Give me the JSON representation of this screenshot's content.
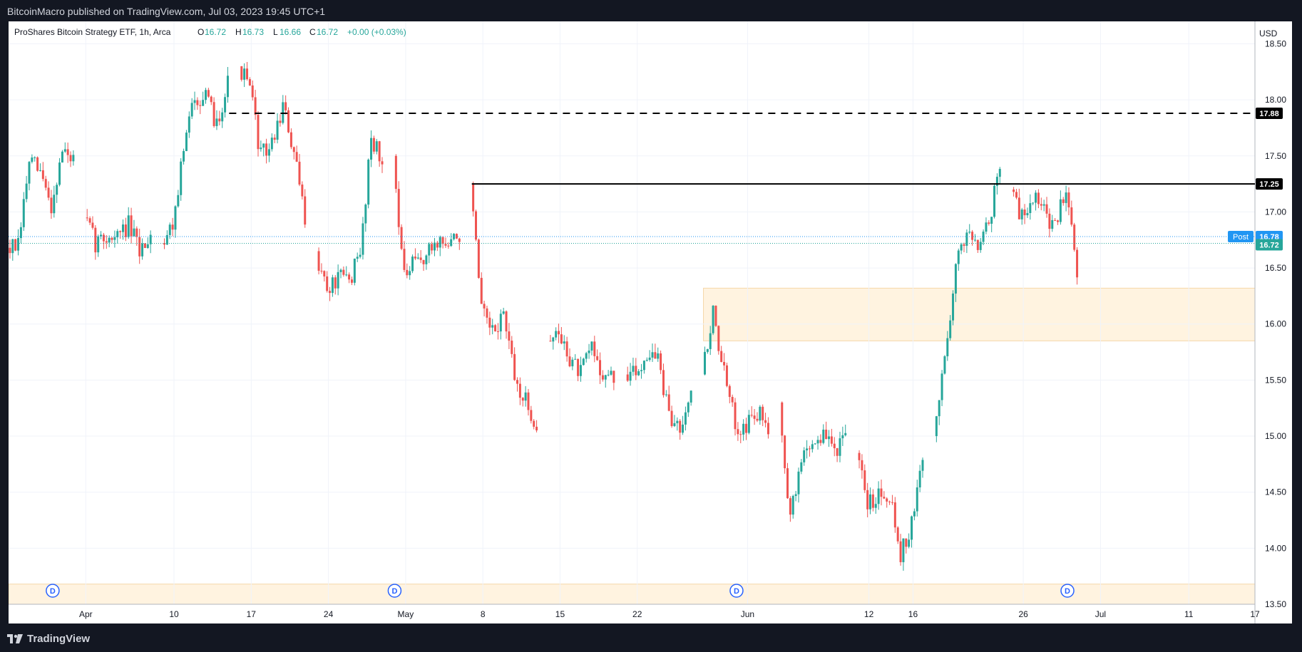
{
  "header": {
    "publisher_line": "BitcoinMacro published on TradingView.com, Jul 03, 2023 19:45 UTC+1"
  },
  "legend": {
    "symbol": "ProShares Bitcoin Strategy ETF, 1h, Arca",
    "o_label": "O",
    "o_value": "16.72",
    "h_label": "H",
    "h_value": "16.73",
    "l_label": "L",
    "l_value": "16.66",
    "c_label": "C",
    "c_value": "16.72",
    "change": "+0.00 (+0.03%)"
  },
  "axis": {
    "currency": "USD",
    "price_ticks": [
      "18.50",
      "18.00",
      "17.50",
      "17.00",
      "16.50",
      "16.00",
      "15.50",
      "15.00",
      "14.50",
      "14.00",
      "13.50"
    ],
    "time_ticks": [
      "Apr",
      "10",
      "17",
      "24",
      "May",
      "8",
      "15",
      "22",
      "Jun",
      "12",
      "16",
      "26",
      "Jul",
      "11",
      "17"
    ]
  },
  "levels": {
    "resistance_dashed": "17.88",
    "resistance_solid": "17.25",
    "post_label": "Post",
    "post_value": "16.78",
    "last_value": "16.72"
  },
  "dividend_marker": "D",
  "footer": {
    "brand": "TradingView"
  },
  "colors": {
    "up": "#26a69a",
    "down": "#ef5350",
    "zone": "#fff3e0",
    "post": "#2196f3",
    "last": "#26a69a",
    "background": "#131722"
  },
  "chart_data": {
    "type": "candlestick",
    "symbol": "ProShares Bitcoin Strategy ETF",
    "interval": "1h",
    "exchange": "Arca",
    "currency": "USD",
    "ylim": [
      13.5,
      18.7
    ],
    "x_range": [
      "Mar 26, 2023",
      "Jul 17, 2023"
    ],
    "grid": true,
    "x_tick_labels": [
      "Apr",
      "10",
      "17",
      "24",
      "May",
      "8",
      "15",
      "22",
      "Jun",
      "12",
      "16",
      "26",
      "Jul",
      "11",
      "17"
    ],
    "y_tick_labels": [
      "18.50",
      "18.00",
      "17.50",
      "17.00",
      "16.50",
      "16.00",
      "15.50",
      "15.00",
      "14.50",
      "14.00",
      "13.50"
    ],
    "horizontal_lines": [
      {
        "value": 17.88,
        "style": "dashed",
        "from": "Apr 15"
      },
      {
        "value": 17.25,
        "style": "solid",
        "from": "May 7"
      }
    ],
    "zones": [
      {
        "from": "May 28",
        "y_low": 15.85,
        "y_high": 16.32
      },
      {
        "from": "Mar 26",
        "y_low": 13.5,
        "y_high": 13.68
      }
    ],
    "dividend_markers": [
      "Mar 30",
      "Apr 30",
      "May 31",
      "Jun 30"
    ],
    "path": [
      [
        "Mar 26",
        16.68
      ],
      [
        "Mar 27",
        16.68
      ],
      [
        "Mar 28",
        17.45
      ],
      [
        "Mar 29",
        17.35
      ],
      [
        "Mar 30",
        17.05
      ],
      [
        "Mar 31",
        17.55
      ],
      [
        "Apr 1",
        17.45
      ],
      [
        "Apr 2",
        16.95
      ],
      [
        "Apr 3",
        16.72
      ],
      [
        "Apr 4",
        16.78
      ],
      [
        "Apr 5",
        16.78
      ],
      [
        "Apr 6",
        16.88
      ],
      [
        "Apr 7",
        16.65
      ],
      [
        "Apr 8",
        16.82
      ],
      [
        "Apr 9",
        16.72
      ],
      [
        "Apr 10",
        16.9
      ],
      [
        "Apr 11",
        17.55
      ],
      [
        "Apr 12",
        18.05
      ],
      [
        "Apr 13",
        18.0
      ],
      [
        "Apr 14",
        17.8
      ],
      [
        "Apr 15",
        18.15
      ],
      [
        "Apr 16",
        18.3
      ],
      [
        "Apr 17",
        18.1
      ],
      [
        "Apr 18",
        17.5
      ],
      [
        "Apr 19",
        17.6
      ],
      [
        "Apr 20",
        17.95
      ],
      [
        "Apr 21",
        17.5
      ],
      [
        "Apr 22",
        16.95
      ],
      [
        "Apr 23",
        16.65
      ],
      [
        "Apr 24",
        16.3
      ],
      [
        "Apr 25",
        16.4
      ],
      [
        "Apr 26",
        16.4
      ],
      [
        "Apr 27",
        16.6
      ],
      [
        "Apr 28",
        17.7
      ],
      [
        "Apr 29",
        17.4
      ],
      [
        "Apr 30",
        17.5
      ],
      [
        "May 1",
        16.4
      ],
      [
        "May 2",
        16.55
      ],
      [
        "May 3",
        16.6
      ],
      [
        "May 4",
        16.75
      ],
      [
        "May 5",
        16.7
      ],
      [
        "May 6",
        16.8
      ],
      [
        "May 7",
        17.25
      ],
      [
        "May 8",
        16.1
      ],
      [
        "May 9",
        15.9
      ],
      [
        "May 10",
        16.1
      ],
      [
        "May 11",
        15.5
      ],
      [
        "May 12",
        15.3
      ],
      [
        "May 13",
        15.1
      ],
      [
        "May 14",
        15.85
      ],
      [
        "May 15",
        15.9
      ],
      [
        "May 16",
        15.7
      ],
      [
        "May 17",
        15.55
      ],
      [
        "May 18",
        15.8
      ],
      [
        "May 19",
        15.55
      ],
      [
        "May 20",
        15.5
      ],
      [
        "May 21",
        15.55
      ],
      [
        "May 22",
        15.55
      ],
      [
        "May 23",
        15.75
      ],
      [
        "May 24",
        15.7
      ],
      [
        "May 25",
        15.15
      ],
      [
        "May 26",
        15.1
      ],
      [
        "May 27",
        15.45
      ],
      [
        "May 28",
        15.55
      ],
      [
        "May 29",
        16.1
      ],
      [
        "May 30",
        15.55
      ],
      [
        "May 31",
        15.1
      ],
      [
        "Jun 1",
        15.1
      ],
      [
        "Jun 2",
        15.2
      ],
      [
        "Jun 3",
        15.1
      ],
      [
        "Jun 4",
        15.3
      ],
      [
        "Jun 5",
        14.25
      ],
      [
        "Jun 6",
        14.8
      ],
      [
        "Jun 7",
        14.95
      ],
      [
        "Jun 8",
        15.0
      ],
      [
        "Jun 9",
        14.9
      ],
      [
        "Jun 10",
        14.95
      ],
      [
        "Jun 11",
        14.85
      ],
      [
        "Jun 12",
        14.4
      ],
      [
        "Jun 13",
        14.5
      ],
      [
        "Jun 14",
        14.5
      ],
      [
        "Jun 15",
        13.95
      ],
      [
        "Jun 16",
        14.2
      ],
      [
        "Jun 17",
        14.8
      ],
      [
        "Jun 18",
        15.0
      ],
      [
        "Jun 19",
        15.7
      ],
      [
        "Jun 20",
        16.5
      ],
      [
        "Jun 21",
        16.85
      ],
      [
        "Jun 22",
        16.75
      ],
      [
        "Jun 23",
        16.9
      ],
      [
        "Jun 24",
        17.45
      ],
      [
        "Jun 25",
        17.2
      ],
      [
        "Jun 26",
        16.95
      ],
      [
        "Jun 27",
        17.15
      ],
      [
        "Jun 28",
        17.0
      ],
      [
        "Jun 29",
        16.85
      ],
      [
        "Jun 30",
        17.25
      ],
      [
        "Jul 1",
        16.5
      ],
      [
        "Jul 2",
        16.72
      ]
    ]
  }
}
